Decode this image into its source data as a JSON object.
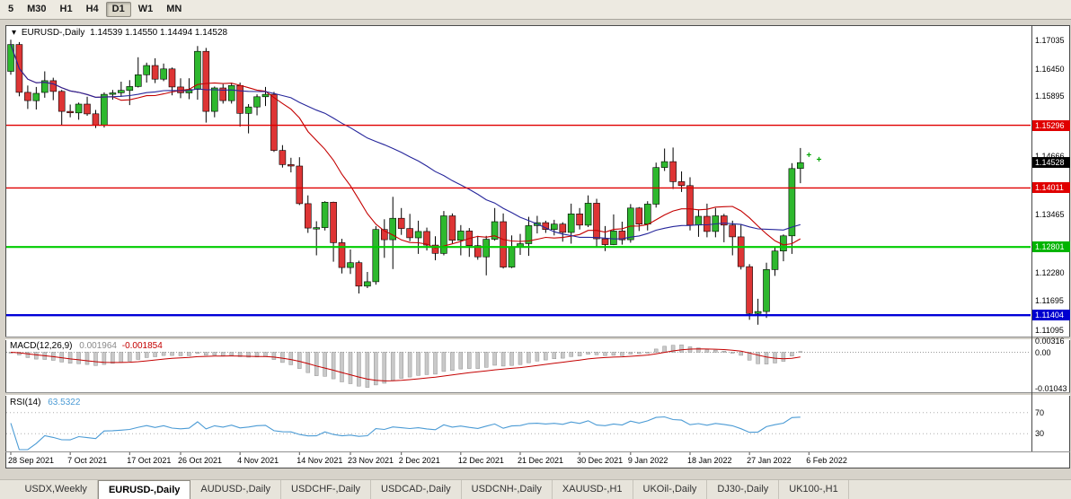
{
  "window": {
    "background": "#D7D3CA"
  },
  "toolbar": {
    "periods": [
      {
        "label": "5",
        "active": false
      },
      {
        "label": "M30",
        "active": false
      },
      {
        "label": "H1",
        "active": false
      },
      {
        "label": "H4",
        "active": false
      },
      {
        "label": "D1",
        "active": true
      },
      {
        "label": "W1",
        "active": false
      },
      {
        "label": "MN",
        "active": false
      }
    ]
  },
  "chart": {
    "title_icon": "▾",
    "title": "EURUSD-,Daily",
    "ohlc_text": "1.14539 1.14550 1.14494 1.14528"
  },
  "macd_panel": {
    "name": "MACD(12,26,9)",
    "value_main": "0.001964",
    "value_signal": "-0.001854",
    "scale": [
      {
        "text": "0.00316",
        "v": 0.00316
      },
      {
        "text": "0.00",
        "v": 0
      },
      {
        "text": "-0.01043",
        "v": -0.01043
      }
    ]
  },
  "rsi_panel": {
    "name": "RSI(14)",
    "value": "63.5322",
    "scale": [
      {
        "text": "70",
        "v": 70
      },
      {
        "text": "30",
        "v": 30
      }
    ]
  },
  "tabs": [
    {
      "label": "USDX,Weekly",
      "active": false
    },
    {
      "label": "EURUSD-,Daily",
      "active": true
    },
    {
      "label": "AUDUSD-,Daily",
      "active": false
    },
    {
      "label": "USDCHF-,Daily",
      "active": false
    },
    {
      "label": "USDCAD-,Daily",
      "active": false
    },
    {
      "label": "USDCNH-,Daily",
      "active": false
    },
    {
      "label": "XAUUSD-,H1",
      "active": false
    },
    {
      "label": "UKOil-,Daily",
      "active": false
    },
    {
      "label": "DJ30-,Daily",
      "active": false
    },
    {
      "label": "UK100-,H1",
      "active": false
    }
  ],
  "chart_data": {
    "type": "candlestick",
    "symbol": "EURUSD-",
    "timeframe": "Daily",
    "current_price": 1.14528,
    "price_axis_labels": [
      {
        "text": "1.17035",
        "price": 1.17035
      },
      {
        "text": "1.16450",
        "price": 1.1645
      },
      {
        "text": "1.15895",
        "price": 1.15895
      },
      {
        "text": "1.14666",
        "price": 1.14666
      },
      {
        "text": "1.13465",
        "price": 1.13465
      },
      {
        "text": "1.12280",
        "price": 1.1228
      },
      {
        "text": "1.11695",
        "price": 1.11695
      },
      {
        "text": "1.11095",
        "price": 1.11095
      }
    ],
    "price_badges": [
      {
        "text": "1.15296",
        "price": 1.15296,
        "color": "#E00000",
        "kind": "resistance-line"
      },
      {
        "text": "1.14528",
        "price": 1.14528,
        "color": "#000000",
        "kind": "current-price"
      },
      {
        "text": "1.14011",
        "price": 1.14011,
        "color": "#E00000",
        "kind": "resistance-line"
      },
      {
        "text": "1.12801",
        "price": 1.12801,
        "color": "#00B400",
        "kind": "support-line"
      },
      {
        "text": "1.11404",
        "price": 1.11404,
        "color": "#0000D0",
        "kind": "support-line"
      }
    ],
    "horizontal_lines": [
      {
        "price": 1.15296,
        "color": "#E00000",
        "width": 1.4,
        "name": "hline-1.15296"
      },
      {
        "price": 1.14011,
        "color": "#E00000",
        "width": 1.4,
        "name": "hline-1.14011"
      },
      {
        "price": 1.12801,
        "color": "#00CC00",
        "width": 2.2,
        "name": "hline-1.12801"
      },
      {
        "price": 1.11404,
        "color": "#0000D8",
        "width": 2.4,
        "name": "hline-1.11404"
      }
    ],
    "date_axis": [
      {
        "label": "28 Sep 2021",
        "i": 0
      },
      {
        "label": "7 Oct 2021",
        "i": 7
      },
      {
        "label": "17 Oct 2021",
        "i": 14
      },
      {
        "label": "26 Oct 2021",
        "i": 20
      },
      {
        "label": "4 Nov 2021",
        "i": 27
      },
      {
        "label": "14 Nov 2021",
        "i": 34
      },
      {
        "label": "23 Nov 2021",
        "i": 40
      },
      {
        "label": "2 Dec 2021",
        "i": 46
      },
      {
        "label": "12 Dec 2021",
        "i": 53
      },
      {
        "label": "21 Dec 2021",
        "i": 60
      },
      {
        "label": "30 Dec 2021",
        "i": 67
      },
      {
        "label": "9 Jan 2022",
        "i": 73
      },
      {
        "label": "18 Jan 2022",
        "i": 80
      },
      {
        "label": "27 Jan 2022",
        "i": 87
      },
      {
        "label": "6 Feb 2022",
        "i": 94
      }
    ],
    "moving_averages": [
      {
        "name": "ma-fast",
        "method": "sma",
        "period": 13,
        "color": "#C40000"
      },
      {
        "name": "ma-slow",
        "method": "sma",
        "period": 34,
        "color": "#26269B"
      }
    ],
    "macd": {
      "fast": 12,
      "slow": 26,
      "signal": 9,
      "hist_color": "#C9C9C9",
      "hist_stroke": "#8F8F8F",
      "signal_color": "#C40000"
    },
    "rsi": {
      "period": 14,
      "color": "#4B9BD5",
      "levels": [
        70,
        30
      ]
    },
    "markers": [
      {
        "i": 94.0,
        "price": 1.1468,
        "glyph": "+",
        "color": "#00A400"
      },
      {
        "i": 95.2,
        "price": 1.1459,
        "glyph": "+",
        "color": "#00A400"
      }
    ],
    "colors": {
      "up": "#2EB82E",
      "down": "#DE3535",
      "outline": "#000000"
    },
    "candles": [
      [
        "2021-09-28",
        1.164,
        1.1705,
        1.1633,
        1.1695
      ],
      [
        "2021-09-29",
        1.1695,
        1.17,
        1.1589,
        1.1597
      ],
      [
        "2021-09-30",
        1.1597,
        1.1611,
        1.1563,
        1.158
      ],
      [
        "2021-10-01",
        1.158,
        1.1608,
        1.1562,
        1.1595
      ],
      [
        "2021-10-04",
        1.1597,
        1.164,
        1.1586,
        1.1621
      ],
      [
        "2021-10-05",
        1.1621,
        1.1627,
        1.1581,
        1.1599
      ],
      [
        "2021-10-06",
        1.1599,
        1.1602,
        1.1529,
        1.1558
      ],
      [
        "2021-10-07",
        1.1558,
        1.1572,
        1.1546,
        1.1555
      ],
      [
        "2021-10-08",
        1.1555,
        1.1576,
        1.1541,
        1.1573
      ],
      [
        "2021-10-11",
        1.1573,
        1.1588,
        1.1549,
        1.1553
      ],
      [
        "2021-10-12",
        1.1553,
        1.1561,
        1.1524,
        1.153
      ],
      [
        "2021-10-13",
        1.153,
        1.1597,
        1.1525,
        1.1593
      ],
      [
        "2021-10-14",
        1.1593,
        1.1602,
        1.1582,
        1.1596
      ],
      [
        "2021-10-15",
        1.1596,
        1.1619,
        1.1588,
        1.1601
      ],
      [
        "2021-10-18",
        1.1601,
        1.1622,
        1.1571,
        1.1609
      ],
      [
        "2021-10-19",
        1.1609,
        1.1669,
        1.1607,
        1.1633
      ],
      [
        "2021-10-20",
        1.1633,
        1.1658,
        1.1617,
        1.1652
      ],
      [
        "2021-10-21",
        1.1652,
        1.1667,
        1.1616,
        1.1624
      ],
      [
        "2021-10-22",
        1.1624,
        1.1656,
        1.162,
        1.1645
      ],
      [
        "2021-10-25",
        1.1645,
        1.1648,
        1.1591,
        1.1608
      ],
      [
        "2021-10-26",
        1.1608,
        1.1626,
        1.1585,
        1.1596
      ],
      [
        "2021-10-27",
        1.1596,
        1.1626,
        1.1583,
        1.1603
      ],
      [
        "2021-10-28",
        1.1603,
        1.1692,
        1.1582,
        1.1681
      ],
      [
        "2021-10-29",
        1.1681,
        1.1688,
        1.1535,
        1.1558
      ],
      [
        "2021-11-01",
        1.1558,
        1.1609,
        1.1546,
        1.1606
      ],
      [
        "2021-11-02",
        1.1606,
        1.1614,
        1.1574,
        1.158
      ],
      [
        "2021-11-03",
        1.158,
        1.1617,
        1.1574,
        1.1611
      ],
      [
        "2021-11-04",
        1.1611,
        1.1617,
        1.1527,
        1.1554
      ],
      [
        "2021-11-05",
        1.1554,
        1.1573,
        1.1513,
        1.1567
      ],
      [
        "2021-11-08",
        1.1567,
        1.1593,
        1.155,
        1.1588
      ],
      [
        "2021-11-09",
        1.1588,
        1.1608,
        1.1569,
        1.1593
      ],
      [
        "2021-11-10",
        1.1593,
        1.1598,
        1.1475,
        1.1478
      ],
      [
        "2021-11-11",
        1.1478,
        1.1489,
        1.1443,
        1.1449
      ],
      [
        "2021-11-12",
        1.1449,
        1.1463,
        1.1433,
        1.1446
      ],
      [
        "2021-11-15",
        1.1446,
        1.1464,
        1.1366,
        1.1369
      ],
      [
        "2021-11-16",
        1.1369,
        1.1386,
        1.1309,
        1.1319
      ],
      [
        "2021-11-17",
        1.1319,
        1.1333,
        1.1263,
        1.132
      ],
      [
        "2021-11-18",
        1.132,
        1.1374,
        1.1314,
        1.1372
      ],
      [
        "2021-11-19",
        1.1372,
        1.1373,
        1.125,
        1.1289
      ],
      [
        "2021-11-22",
        1.1289,
        1.1297,
        1.1226,
        1.1238
      ],
      [
        "2021-11-23",
        1.1238,
        1.1275,
        1.1225,
        1.1248
      ],
      [
        "2021-11-24",
        1.1248,
        1.1252,
        1.1185,
        1.12
      ],
      [
        "2021-11-25",
        1.12,
        1.1229,
        1.1196,
        1.1209
      ],
      [
        "2021-11-26",
        1.1209,
        1.1323,
        1.1203,
        1.1316
      ],
      [
        "2021-11-29",
        1.1316,
        1.1337,
        1.1258,
        1.1295
      ],
      [
        "2021-11-30",
        1.1295,
        1.1383,
        1.1235,
        1.1339
      ],
      [
        "2021-12-01",
        1.1339,
        1.136,
        1.1305,
        1.1318
      ],
      [
        "2021-12-02",
        1.1318,
        1.1348,
        1.1292,
        1.1299
      ],
      [
        "2021-12-03",
        1.1299,
        1.1334,
        1.1266,
        1.1312
      ],
      [
        "2021-12-06",
        1.1312,
        1.132,
        1.1273,
        1.1284
      ],
      [
        "2021-12-07",
        1.1284,
        1.1302,
        1.1253,
        1.1267
      ],
      [
        "2021-12-08",
        1.1267,
        1.1354,
        1.1263,
        1.1344
      ],
      [
        "2021-12-09",
        1.1344,
        1.1349,
        1.1288,
        1.1294
      ],
      [
        "2021-12-10",
        1.1294,
        1.1325,
        1.1263,
        1.1313
      ],
      [
        "2021-12-13",
        1.1313,
        1.1319,
        1.126,
        1.1283
      ],
      [
        "2021-12-14",
        1.1283,
        1.1303,
        1.1254,
        1.126
      ],
      [
        "2021-12-15",
        1.126,
        1.1303,
        1.1222,
        1.1296
      ],
      [
        "2021-12-16",
        1.1296,
        1.136,
        1.1293,
        1.1332
      ],
      [
        "2021-12-17",
        1.1332,
        1.1349,
        1.1236,
        1.1239
      ],
      [
        "2021-12-20",
        1.1239,
        1.1304,
        1.1237,
        1.128
      ],
      [
        "2021-12-21",
        1.128,
        1.1307,
        1.1264,
        1.1287
      ],
      [
        "2021-12-22",
        1.1287,
        1.1342,
        1.1262,
        1.1324
      ],
      [
        "2021-12-23",
        1.1324,
        1.1344,
        1.1308,
        1.133
      ],
      [
        "2021-12-24",
        1.133,
        1.1334,
        1.1309,
        1.1316
      ],
      [
        "2021-12-27",
        1.1316,
        1.1336,
        1.1304,
        1.1327
      ],
      [
        "2021-12-28",
        1.1327,
        1.1331,
        1.1291,
        1.131
      ],
      [
        "2021-12-29",
        1.131,
        1.1369,
        1.1287,
        1.1348
      ],
      [
        "2021-12-30",
        1.1348,
        1.136,
        1.1316,
        1.1325
      ],
      [
        "2021-12-31",
        1.1325,
        1.1386,
        1.1321,
        1.137
      ],
      [
        "2022-01-03",
        1.137,
        1.1379,
        1.1279,
        1.1297
      ],
      [
        "2022-01-04",
        1.1297,
        1.1323,
        1.1272,
        1.1285
      ],
      [
        "2022-01-05",
        1.1285,
        1.1347,
        1.1284,
        1.1313
      ],
      [
        "2022-01-06",
        1.1313,
        1.1332,
        1.1285,
        1.1295
      ],
      [
        "2022-01-07",
        1.1295,
        1.1368,
        1.1289,
        1.136
      ],
      [
        "2022-01-10",
        1.136,
        1.1362,
        1.1313,
        1.1327
      ],
      [
        "2022-01-11",
        1.1327,
        1.1374,
        1.1314,
        1.1368
      ],
      [
        "2022-01-12",
        1.1368,
        1.1453,
        1.1361,
        1.1443
      ],
      [
        "2022-01-13",
        1.1443,
        1.1482,
        1.1436,
        1.1455
      ],
      [
        "2022-01-14",
        1.1455,
        1.1484,
        1.1399,
        1.1414
      ],
      [
        "2022-01-17",
        1.1414,
        1.1435,
        1.1393,
        1.1406
      ],
      [
        "2022-01-18",
        1.1406,
        1.1423,
        1.1314,
        1.1325
      ],
      [
        "2022-01-19",
        1.1325,
        1.1357,
        1.1301,
        1.1343
      ],
      [
        "2022-01-20",
        1.1343,
        1.1369,
        1.13,
        1.1312
      ],
      [
        "2022-01-21",
        1.1312,
        1.136,
        1.13,
        1.1344
      ],
      [
        "2022-01-24",
        1.1344,
        1.1348,
        1.129,
        1.1325
      ],
      [
        "2022-01-25",
        1.1325,
        1.1334,
        1.1263,
        1.1301
      ],
      [
        "2022-01-26",
        1.1301,
        1.1327,
        1.1234,
        1.124
      ],
      [
        "2022-01-27",
        1.124,
        1.1245,
        1.1131,
        1.1144
      ],
      [
        "2022-01-28",
        1.1144,
        1.1174,
        1.1121,
        1.1148
      ],
      [
        "2022-01-31",
        1.1148,
        1.1248,
        1.1135,
        1.1234
      ],
      [
        "2022-02-01",
        1.1234,
        1.1279,
        1.1221,
        1.1272
      ],
      [
        "2022-02-02",
        1.1272,
        1.1306,
        1.1251,
        1.1303
      ],
      [
        "2022-02-03",
        1.1303,
        1.1452,
        1.1266,
        1.1441
      ],
      [
        "2022-02-04",
        1.1441,
        1.1483,
        1.1411,
        1.1453
      ]
    ]
  }
}
